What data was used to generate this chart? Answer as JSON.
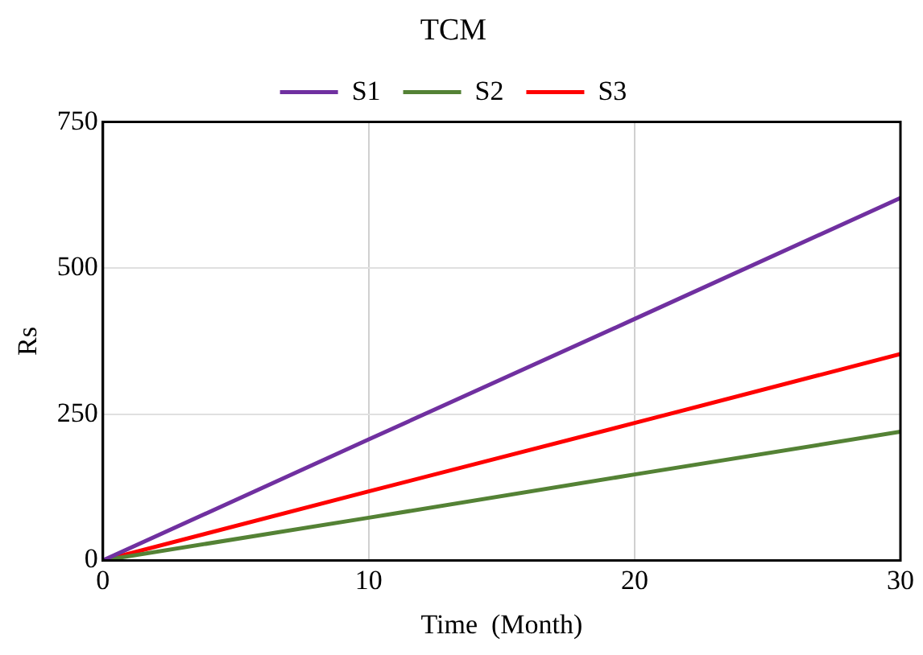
{
  "chart_data": {
    "type": "line",
    "title": "TCM",
    "xlabel": "Time  (Month)",
    "ylabel": "Rs",
    "x": [
      0,
      10,
      20,
      30
    ],
    "series": [
      {
        "name": "S1",
        "color": "#7030a0",
        "values": [
          0,
          207,
          413,
          620
        ]
      },
      {
        "name": "S2",
        "color": "#548235",
        "values": [
          0,
          73,
          147,
          220
        ]
      },
      {
        "name": "S3",
        "color": "#ff0000",
        "values": [
          0,
          118,
          235,
          353
        ]
      }
    ],
    "xlim": [
      0,
      30
    ],
    "xticks": [
      0,
      10,
      20,
      30
    ],
    "ylim": [
      0,
      750
    ],
    "yticks": [
      0,
      250,
      500,
      750
    ],
    "grid": true,
    "legend": "top",
    "marker": "none",
    "line_style": "solid"
  }
}
